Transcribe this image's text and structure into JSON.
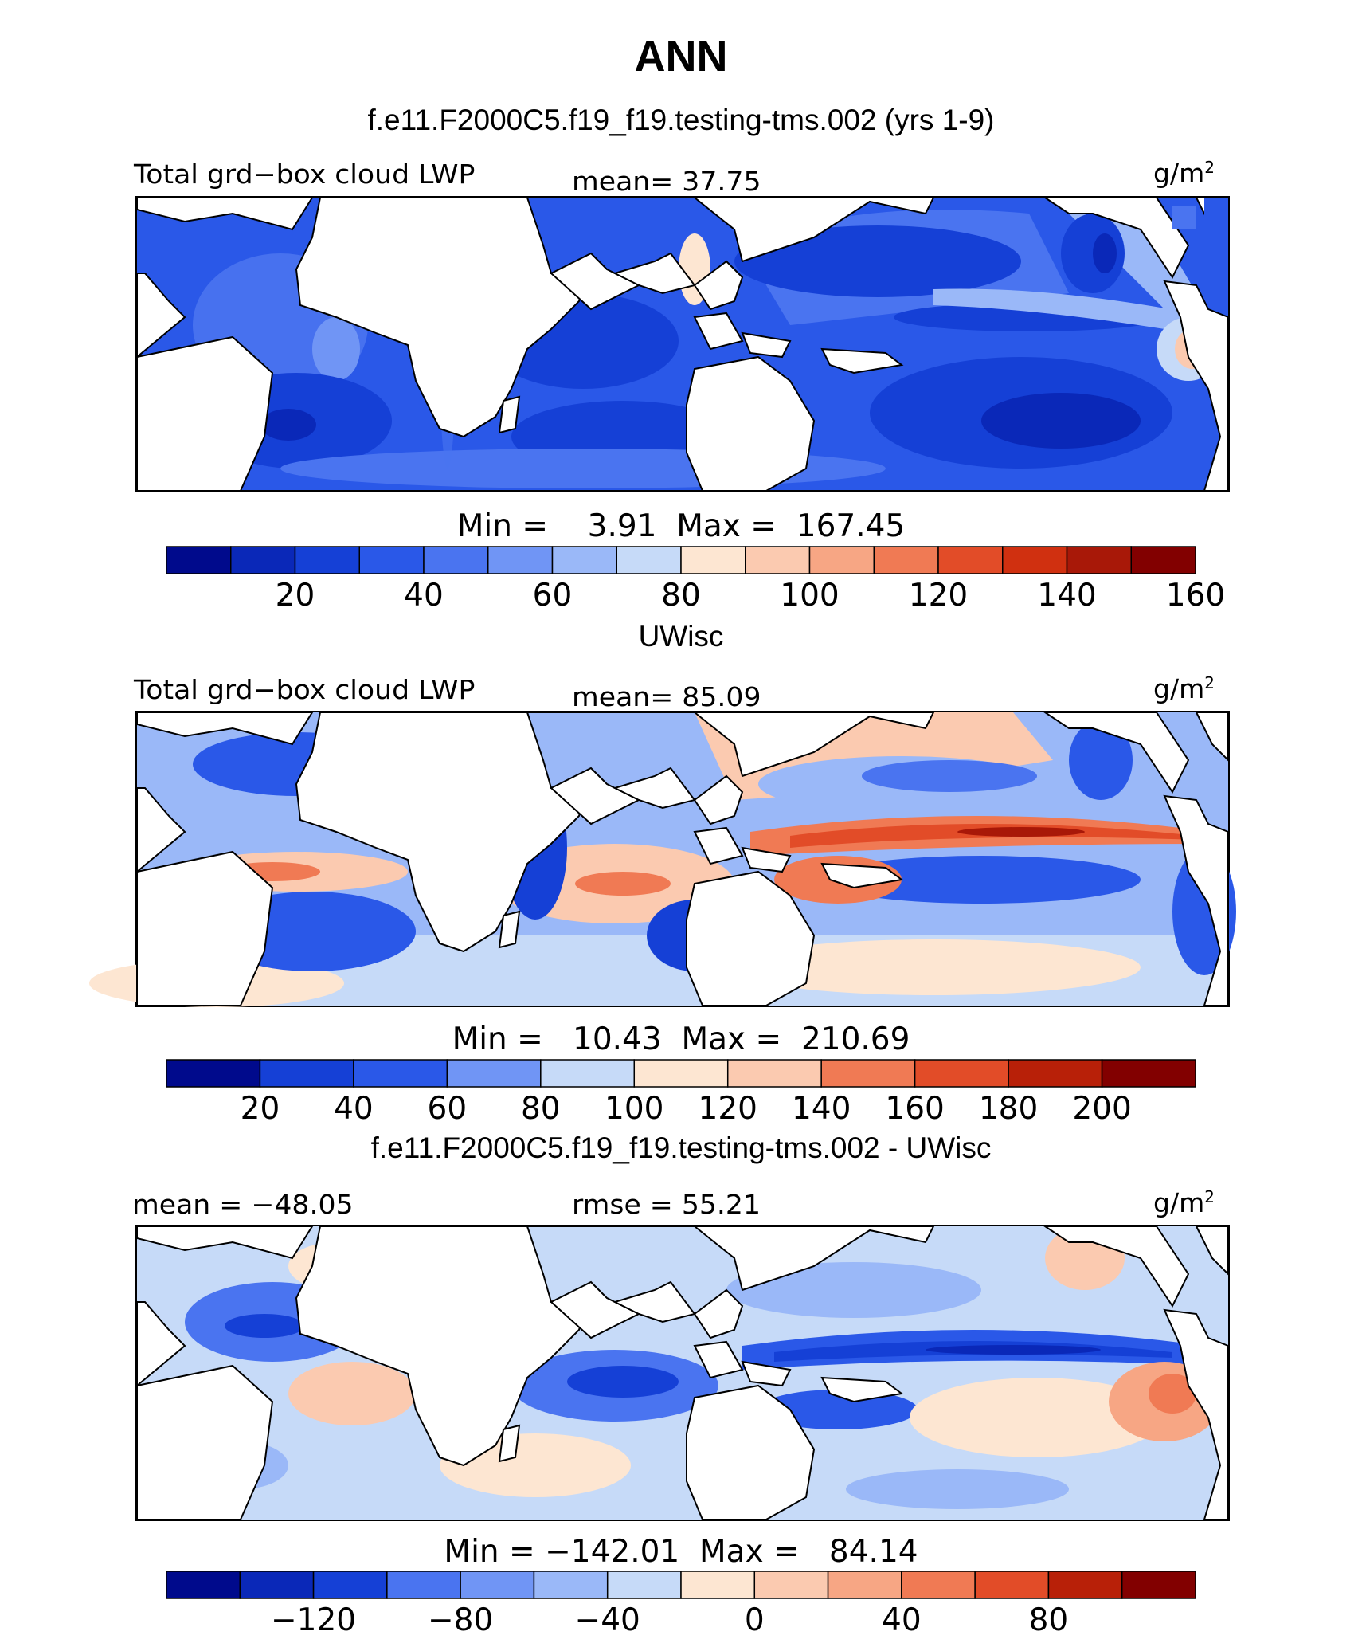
{
  "title": "ANN",
  "panels": [
    {
      "case_title": "f.e11.F2000C5.f19_f19.testing-tms.002 (yrs 1-9)",
      "left_label": "Total grd−box cloud LWP",
      "center_label": "mean=  37.75",
      "units": "g/m",
      "units_sup": "2",
      "minmax": "Min =    3.91  Max =  167.45",
      "colorbar": {
        "colors": [
          "#000a8c",
          "#0a28b8",
          "#1540d6",
          "#2a58e8",
          "#4a74f0",
          "#7095f5",
          "#9ab8f8",
          "#c6daf8",
          "#fde6d2",
          "#fbcab0",
          "#f7a684",
          "#f07a54",
          "#e24c28",
          "#d03010",
          "#a81808",
          "#820000"
        ],
        "tick_labels": [
          "20",
          "40",
          "60",
          "80",
          "100",
          "120",
          "140",
          "160"
        ],
        "tick_positions": [
          2,
          4,
          6,
          8,
          10,
          12,
          14,
          16
        ]
      }
    },
    {
      "case_title": "UWisc",
      "left_label": "Total grd−box cloud LWP",
      "center_label": "mean=  85.09",
      "units": "g/m",
      "units_sup": "2",
      "minmax": "Min =   10.43  Max =  210.69",
      "colorbar": {
        "colors": [
          "#000a8c",
          "#1540d6",
          "#2a58e8",
          "#7095f5",
          "#c6daf8",
          "#fde6d2",
          "#fbcab0",
          "#f07a54",
          "#e24c28",
          "#b82008",
          "#820000"
        ],
        "tick_labels": [
          "20",
          "40",
          "60",
          "80",
          "100",
          "120",
          "140",
          "160",
          "180",
          "200"
        ],
        "tick_positions": [
          1,
          2,
          3,
          4,
          5,
          6,
          7,
          8,
          9,
          10
        ]
      }
    },
    {
      "case_title": "f.e11.F2000C5.f19_f19.testing-tms.002 - UWisc",
      "left_label": "mean = −48.05",
      "center_label": "rmse =  55.21",
      "units": "g/m",
      "units_sup": "2",
      "minmax": "Min = −142.01  Max =   84.14",
      "colorbar": {
        "colors": [
          "#000a8c",
          "#0a28b8",
          "#1540d6",
          "#4a74f0",
          "#7095f5",
          "#9ab8f8",
          "#c6daf8",
          "#fde6d2",
          "#fbcab0",
          "#f7a684",
          "#f07a54",
          "#e24c28",
          "#b82008",
          "#820000"
        ],
        "tick_labels": [
          "−120",
          "−80",
          "−40",
          "0",
          "40",
          "80"
        ],
        "tick_positions": [
          2,
          4,
          6,
          8,
          10,
          12
        ]
      }
    }
  ],
  "colors": {
    "ocean_deep_blue": "#1540d6",
    "ocean_mid_blue": "#4a74f0",
    "ocean_light_blue": "#9ab8f8",
    "pale_blue": "#c6daf8",
    "pale_orange": "#fde6d2",
    "light_orange": "#fbcab0",
    "orange": "#f07a54",
    "red": "#e24c28",
    "dark_red": "#a81808",
    "land": "#ffffff",
    "coast": "#000000"
  }
}
